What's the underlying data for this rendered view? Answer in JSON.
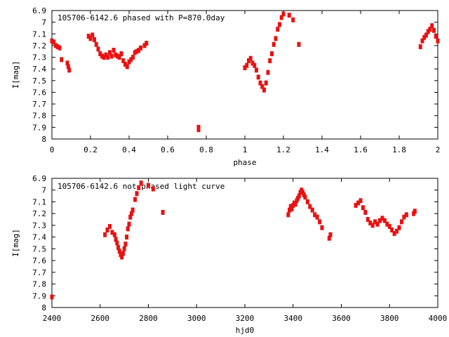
{
  "chart_data": [
    {
      "type": "scatter",
      "title": "105706-6142.6 phased with P=870.0day",
      "xlabel": "phase",
      "ylabel": "I[mag]",
      "xlim": [
        0,
        2
      ],
      "ylim": [
        6.9,
        8.0
      ],
      "y_inverted": true,
      "x_ticks": [
        "0",
        "0.2",
        "0.4",
        "0.6",
        "0.8",
        "1",
        "1.2",
        "1.4",
        "1.6",
        "1.8",
        "2"
      ],
      "y_ticks": [
        "6.9",
        "7",
        "7.1",
        "7.2",
        "7.3",
        "7.4",
        "7.5",
        "7.6",
        "7.7",
        "7.8",
        "7.9",
        "8"
      ],
      "marker_color": "#e81212",
      "series": [
        {
          "points": [
            [
              0.0,
              7.16
            ],
            [
              0.01,
              7.17
            ],
            [
              0.02,
              7.2
            ],
            [
              0.03,
              7.21
            ],
            [
              0.04,
              7.22
            ],
            [
              0.05,
              7.32
            ],
            [
              0.08,
              7.35
            ],
            [
              0.085,
              7.38
            ],
            [
              0.09,
              7.41
            ],
            [
              0.19,
              7.12
            ],
            [
              0.2,
              7.14
            ],
            [
              0.21,
              7.11
            ],
            [
              0.22,
              7.15
            ],
            [
              0.23,
              7.19
            ],
            [
              0.24,
              7.23
            ],
            [
              0.25,
              7.27
            ],
            [
              0.26,
              7.29
            ],
            [
              0.27,
              7.3
            ],
            [
              0.28,
              7.28
            ],
            [
              0.29,
              7.3
            ],
            [
              0.3,
              7.26
            ],
            [
              0.31,
              7.29
            ],
            [
              0.32,
              7.24
            ],
            [
              0.33,
              7.28
            ],
            [
              0.34,
              7.29
            ],
            [
              0.35,
              7.3
            ],
            [
              0.36,
              7.27
            ],
            [
              0.37,
              7.33
            ],
            [
              0.38,
              7.36
            ],
            [
              0.39,
              7.38
            ],
            [
              0.4,
              7.34
            ],
            [
              0.41,
              7.32
            ],
            [
              0.42,
              7.3
            ],
            [
              0.43,
              7.26
            ],
            [
              0.44,
              7.25
            ],
            [
              0.45,
              7.24
            ],
            [
              0.46,
              7.22
            ],
            [
              0.48,
              7.2
            ],
            [
              0.49,
              7.18
            ],
            [
              0.76,
              7.9
            ],
            [
              0.76,
              7.92
            ],
            [
              1.0,
              7.39
            ],
            [
              1.01,
              7.37
            ],
            [
              1.02,
              7.33
            ],
            [
              1.03,
              7.31
            ],
            [
              1.04,
              7.35
            ],
            [
              1.05,
              7.37
            ],
            [
              1.06,
              7.41
            ],
            [
              1.07,
              7.47
            ],
            [
              1.08,
              7.52
            ],
            [
              1.09,
              7.55
            ],
            [
              1.1,
              7.58
            ],
            [
              1.11,
              7.52
            ],
            [
              1.12,
              7.43
            ],
            [
              1.13,
              7.33
            ],
            [
              1.14,
              7.27
            ],
            [
              1.15,
              7.19
            ],
            [
              1.16,
              7.14
            ],
            [
              1.17,
              7.06
            ],
            [
              1.18,
              7.02
            ],
            [
              1.19,
              6.96
            ],
            [
              1.2,
              6.93
            ],
            [
              1.23,
              6.94
            ],
            [
              1.25,
              6.98
            ],
            [
              1.28,
              7.19
            ],
            [
              1.91,
              7.21
            ],
            [
              1.92,
              7.16
            ],
            [
              1.93,
              7.13
            ],
            [
              1.94,
              7.11
            ],
            [
              1.95,
              7.08
            ],
            [
              1.96,
              7.06
            ],
            [
              1.97,
              7.03
            ],
            [
              1.98,
              7.07
            ],
            [
              1.99,
              7.12
            ],
            [
              2.0,
              7.16
            ]
          ]
        }
      ]
    },
    {
      "type": "scatter",
      "title": "105706-6142.6 not phased light curve",
      "xlabel": "hjd0",
      "ylabel": "I[mag]",
      "xlim": [
        2400,
        4000
      ],
      "ylim": [
        6.9,
        8.0
      ],
      "y_inverted": true,
      "x_ticks": [
        "2400",
        "2600",
        "2800",
        "3000",
        "3200",
        "3400",
        "3600",
        "3800",
        "4000"
      ],
      "y_ticks": [
        "6.9",
        "7",
        "7.1",
        "7.2",
        "7.3",
        "7.4",
        "7.5",
        "7.6",
        "7.7",
        "7.8",
        "7.9",
        "8"
      ],
      "marker_color": "#e81212",
      "series": [
        {
          "points": [
            [
              2400,
              7.91
            ],
            [
              2620,
              7.38
            ],
            [
              2630,
              7.34
            ],
            [
              2640,
              7.31
            ],
            [
              2650,
              7.36
            ],
            [
              2660,
              7.38
            ],
            [
              2665,
              7.42
            ],
            [
              2670,
              7.45
            ],
            [
              2675,
              7.49
            ],
            [
              2680,
              7.52
            ],
            [
              2685,
              7.55
            ],
            [
              2690,
              7.57
            ],
            [
              2695,
              7.54
            ],
            [
              2700,
              7.5
            ],
            [
              2705,
              7.46
            ],
            [
              2710,
              7.4
            ],
            [
              2715,
              7.33
            ],
            [
              2720,
              7.29
            ],
            [
              2725,
              7.23
            ],
            [
              2730,
              7.2
            ],
            [
              2735,
              7.17
            ],
            [
              2745,
              7.08
            ],
            [
              2752,
              7.03
            ],
            [
              2760,
              6.98
            ],
            [
              2770,
              6.94
            ],
            [
              2800,
              6.96
            ],
            [
              2820,
              6.99
            ],
            [
              2860,
              7.19
            ],
            [
              3380,
              7.21
            ],
            [
              3385,
              7.17
            ],
            [
              3390,
              7.14
            ],
            [
              3395,
              7.16
            ],
            [
              3400,
              7.13
            ],
            [
              3405,
              7.11
            ],
            [
              3410,
              7.12
            ],
            [
              3415,
              7.09
            ],
            [
              3420,
              7.07
            ],
            [
              3425,
              7.05
            ],
            [
              3430,
              7.02
            ],
            [
              3435,
              7.0
            ],
            [
              3440,
              7.02
            ],
            [
              3445,
              7.04
            ],
            [
              3450,
              7.06
            ],
            [
              3460,
              7.1
            ],
            [
              3470,
              7.14
            ],
            [
              3480,
              7.17
            ],
            [
              3490,
              7.21
            ],
            [
              3500,
              7.23
            ],
            [
              3510,
              7.27
            ],
            [
              3520,
              7.32
            ],
            [
              3550,
              7.41
            ],
            [
              3555,
              7.38
            ],
            [
              3660,
              7.13
            ],
            [
              3670,
              7.11
            ],
            [
              3680,
              7.09
            ],
            [
              3690,
              7.15
            ],
            [
              3700,
              7.19
            ],
            [
              3710,
              7.25
            ],
            [
              3720,
              7.28
            ],
            [
              3730,
              7.3
            ],
            [
              3740,
              7.27
            ],
            [
              3750,
              7.29
            ],
            [
              3760,
              7.26
            ],
            [
              3770,
              7.24
            ],
            [
              3780,
              7.26
            ],
            [
              3790,
              7.29
            ],
            [
              3800,
              7.31
            ],
            [
              3810,
              7.34
            ],
            [
              3820,
              7.37
            ],
            [
              3830,
              7.35
            ],
            [
              3840,
              7.32
            ],
            [
              3850,
              7.27
            ],
            [
              3860,
              7.23
            ],
            [
              3870,
              7.21
            ],
            [
              3900,
              7.2
            ],
            [
              3905,
              7.18
            ]
          ]
        }
      ]
    }
  ]
}
